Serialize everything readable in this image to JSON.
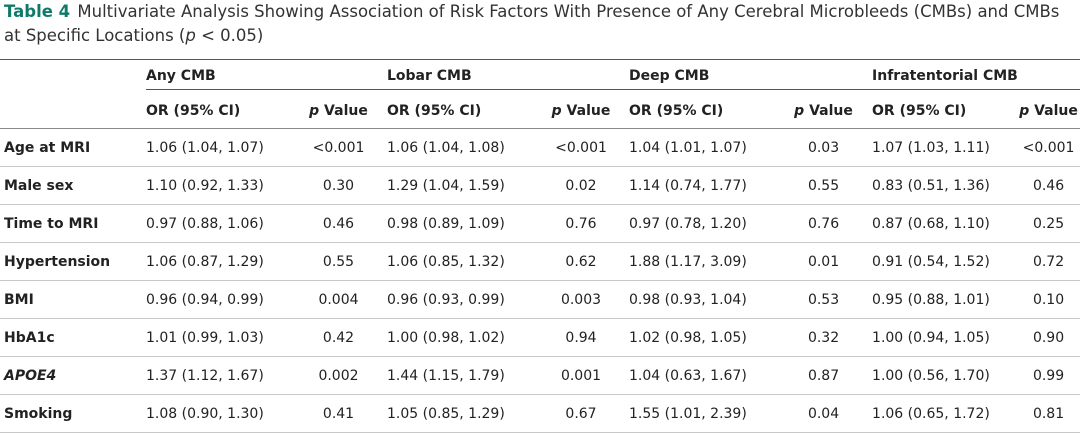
{
  "caption": {
    "label": "Table 4",
    "text_before_p": "Multivariate Analysis Showing Association of Risk Factors With Presence of Any Cerebral Microbleeds (CMBs) and CMBs at Specific Locations (",
    "p_italic": "p",
    "text_after_p": " < 0.05)"
  },
  "groups": [
    "Any CMB",
    "Lobar CMB",
    "Deep CMB",
    "Infratentorial CMB"
  ],
  "subheaders": {
    "or": "OR (95% CI)",
    "p_italic": "p",
    "p_rest": " Value"
  },
  "rows": [
    {
      "label": "Age at MRI",
      "italic": false,
      "cells": [
        "1.06 (1.04, 1.07)",
        "<0.001",
        "1.06 (1.04, 1.08)",
        "<0.001",
        "1.04 (1.01, 1.07)",
        "0.03",
        "1.07 (1.03, 1.11)",
        "<0.001"
      ]
    },
    {
      "label": "Male sex",
      "italic": false,
      "cells": [
        "1.10 (0.92, 1.33)",
        "0.30",
        "1.29 (1.04, 1.59)",
        "0.02",
        "1.14 (0.74, 1.77)",
        "0.55",
        "0.83 (0.51, 1.36)",
        "0.46"
      ]
    },
    {
      "label": "Time to MRI",
      "italic": false,
      "cells": [
        "0.97 (0.88, 1.06)",
        "0.46",
        "0.98 (0.89, 1.09)",
        "0.76",
        "0.97 (0.78, 1.20)",
        "0.76",
        "0.87 (0.68, 1.10)",
        "0.25"
      ]
    },
    {
      "label": "Hypertension",
      "italic": false,
      "cells": [
        "1.06 (0.87, 1.29)",
        "0.55",
        "1.06 (0.85, 1.32)",
        "0.62",
        "1.88 (1.17, 3.09)",
        "0.01",
        "0.91 (0.54, 1.52)",
        "0.72"
      ]
    },
    {
      "label": "BMI",
      "italic": false,
      "cells": [
        "0.96 (0.94, 0.99)",
        "0.004",
        "0.96 (0.93, 0.99)",
        "0.003",
        "0.98 (0.93, 1.04)",
        "0.53",
        "0.95 (0.88, 1.01)",
        "0.10"
      ]
    },
    {
      "label": "HbA1c",
      "italic": false,
      "cells": [
        "1.01 (0.99, 1.03)",
        "0.42",
        "1.00 (0.98, 1.02)",
        "0.94",
        "1.02 (0.98, 1.05)",
        "0.32",
        "1.00 (0.94, 1.05)",
        "0.90"
      ]
    },
    {
      "label": "APOE4",
      "italic": true,
      "cells": [
        "1.37 (1.12, 1.67)",
        "0.002",
        "1.44 (1.15, 1.79)",
        "0.001",
        "1.04 (0.63, 1.67)",
        "0.87",
        "1.00 (0.56, 1.70)",
        "0.99"
      ]
    },
    {
      "label": "Smoking",
      "italic": false,
      "cells": [
        "1.08 (0.90, 1.30)",
        "0.41",
        "1.05 (0.85, 1.29)",
        "0.67",
        "1.55 (1.01, 2.39)",
        "0.04",
        "1.06 (0.65, 1.72)",
        "0.81"
      ]
    }
  ],
  "colors": {
    "accent": "#0f7a6b"
  }
}
